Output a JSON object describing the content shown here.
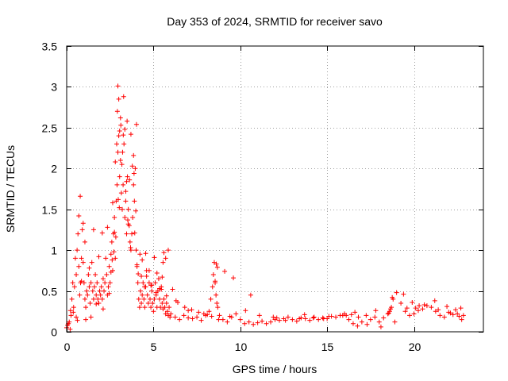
{
  "chart_data": {
    "type": "scatter",
    "title": "Day 353 of 2024, SRMTID for receiver savo",
    "xlabel": "GPS time / hours",
    "ylabel": "SRMTID / TECUs",
    "xlim": [
      0,
      24
    ],
    "ylim": [
      0,
      3.5
    ],
    "x_ticks": [
      0,
      5,
      10,
      15,
      20
    ],
    "x_tick_labels": [
      "0",
      "5",
      "10",
      "15",
      "20"
    ],
    "y_ticks": [
      0,
      0.5,
      1,
      1.5,
      2,
      2.5,
      3,
      3.5
    ],
    "y_tick_labels": [
      "0",
      "0.5",
      "1",
      "1.5",
      "2",
      "2.5",
      "3",
      "3.5"
    ],
    "grid": true,
    "marker": "+",
    "color": "#ff0000",
    "series": [
      {
        "name": "savo",
        "x": [
          0.0,
          0.05,
          0.1,
          0.15,
          0.2,
          0.25,
          0.3,
          0.35,
          0.4,
          0.45,
          0.5,
          0.55,
          0.6,
          0.65,
          0.7,
          0.75,
          0.8,
          0.85,
          0.9,
          0.95,
          1.0,
          1.05,
          1.1,
          1.15,
          1.2,
          1.25,
          1.3,
          1.35,
          1.4,
          1.45,
          1.5,
          1.55,
          1.6,
          1.65,
          1.7,
          1.75,
          1.8,
          1.85,
          1.9,
          1.95,
          2.0,
          2.05,
          2.1,
          2.15,
          2.2,
          2.25,
          2.3,
          2.35,
          2.4,
          2.45,
          2.5,
          2.55,
          2.6,
          2.65,
          2.7,
          2.75,
          2.8,
          2.85,
          2.9,
          2.95,
          3.0,
          3.05,
          3.1,
          3.15,
          3.2,
          3.25,
          3.3,
          3.35,
          3.4,
          3.45,
          3.5,
          3.55,
          3.6,
          3.65,
          3.7,
          3.75,
          3.8,
          3.85,
          3.9,
          3.95,
          4.0,
          4.05,
          4.1,
          4.15,
          4.2,
          4.25,
          4.3,
          4.35,
          4.4,
          4.45,
          4.5,
          4.55,
          4.6,
          4.65,
          4.7,
          4.75,
          4.8,
          4.85,
          4.9,
          4.95,
          5.0,
          5.05,
          5.1,
          5.15,
          5.2,
          5.25,
          5.3,
          5.35,
          5.4,
          5.45,
          5.5,
          5.55,
          5.6,
          5.65,
          5.7,
          5.75,
          5.8,
          5.85,
          5.9,
          5.95,
          6.0,
          6.25,
          6.5,
          6.75,
          7.0,
          7.25,
          7.5,
          7.75,
          8.0,
          8.2,
          8.3,
          8.4,
          8.45,
          8.5,
          8.55,
          8.6,
          8.65,
          8.7,
          8.8,
          9.0,
          9.25,
          9.5,
          9.75,
          10.0,
          10.25,
          10.5,
          10.75,
          11.0,
          11.25,
          11.5,
          11.75,
          12.0,
          12.25,
          12.5,
          12.75,
          13.0,
          13.25,
          13.5,
          13.75,
          14.0,
          14.25,
          14.5,
          14.75,
          15.0,
          15.25,
          15.5,
          15.75,
          16.0,
          16.25,
          16.5,
          16.75,
          17.0,
          17.25,
          17.5,
          17.75,
          18.0,
          18.25,
          18.5,
          18.6,
          18.7,
          18.8,
          19.0,
          19.25,
          19.5,
          19.75,
          20.0,
          20.25,
          20.5,
          20.75,
          21.0,
          21.25,
          21.5,
          21.75,
          22.0,
          22.25,
          22.5,
          22.75,
          22.85,
          0.55,
          0.62,
          0.7,
          0.78,
          0.85,
          0.95,
          1.05,
          1.3,
          1.55,
          1.85,
          2.05,
          2.35,
          2.55,
          2.65,
          2.75,
          2.8,
          2.88,
          2.92,
          2.95,
          3.0,
          3.05,
          3.1,
          3.18,
          3.22,
          3.28,
          3.35,
          3.4,
          3.48,
          3.55,
          3.62,
          3.7,
          3.78,
          3.85,
          3.92,
          3.98,
          4.05,
          4.12,
          4.22,
          4.35,
          4.48,
          4.6,
          4.75,
          4.9,
          5.05,
          5.2,
          5.35,
          5.5,
          5.55,
          5.6,
          5.7,
          5.85,
          6.1,
          6.4,
          6.8,
          7.2,
          7.6,
          8.1,
          8.35,
          8.55,
          8.62,
          8.68,
          9.1,
          9.6,
          10.3,
          11.1,
          11.9,
          12.6,
          13.4,
          14.2,
          15.1,
          15.9,
          16.4,
          16.6,
          17.3,
          18.1,
          18.55,
          18.65,
          18.75,
          19.4,
          19.9,
          20.1,
          20.6,
          21.2,
          21.9,
          22.4,
          22.7,
          0.22,
          0.38,
          1.1,
          1.4,
          1.7,
          2.1,
          2.45,
          2.62,
          2.72,
          2.83,
          2.97,
          3.03,
          3.12,
          3.26,
          3.45,
          3.52,
          3.68,
          3.88,
          4.02,
          4.3,
          4.55,
          4.85,
          5.15,
          5.45,
          5.75,
          6.3,
          7.0,
          7.9,
          8.75,
          9.4,
          10.6,
          12.1,
          13.7,
          14.8,
          16.1,
          16.8,
          17.8,
          18.9,
          19.6,
          20.3,
          21.4,
          22.1,
          22.6
        ],
        "y": [
          0.05,
          0.08,
          0.1,
          0.12,
          0.03,
          0.2,
          0.4,
          0.6,
          0.3,
          0.55,
          0.9,
          0.7,
          1.0,
          1.2,
          0.8,
          0.45,
          0.6,
          0.9,
          1.25,
          0.85,
          0.6,
          0.4,
          0.3,
          0.5,
          0.45,
          0.7,
          0.55,
          0.35,
          0.6,
          0.85,
          0.5,
          0.4,
          0.55,
          0.7,
          0.45,
          0.6,
          0.4,
          0.35,
          0.5,
          0.45,
          0.55,
          0.4,
          0.65,
          0.5,
          0.6,
          0.9,
          0.7,
          0.45,
          0.55,
          0.8,
          0.6,
          0.95,
          1.1,
          0.75,
          1.2,
          1.4,
          0.9,
          1.6,
          1.8,
          2.2,
          2.4,
          1.9,
          2.1,
          1.7,
          1.5,
          1.8,
          2.3,
          1.4,
          1.6,
          1.2,
          1.9,
          1.5,
          1.3,
          1.1,
          1.0,
          1.2,
          1.4,
          1.8,
          1.6,
          2.0,
          1.0,
          0.8,
          0.6,
          0.4,
          0.3,
          0.5,
          0.35,
          0.45,
          0.6,
          0.4,
          0.3,
          0.55,
          0.75,
          0.45,
          0.35,
          0.6,
          0.4,
          0.3,
          0.5,
          0.35,
          0.25,
          0.4,
          0.6,
          0.45,
          0.3,
          0.5,
          0.65,
          0.4,
          0.3,
          0.55,
          0.35,
          0.28,
          0.4,
          0.3,
          0.22,
          0.35,
          0.25,
          0.2,
          0.3,
          0.18,
          0.22,
          0.18,
          0.15,
          0.2,
          0.17,
          0.16,
          0.18,
          0.14,
          0.2,
          0.25,
          0.4,
          0.55,
          0.7,
          0.85,
          0.6,
          0.45,
          0.35,
          0.3,
          0.2,
          0.15,
          0.12,
          0.18,
          0.22,
          0.15,
          0.1,
          0.12,
          0.09,
          0.11,
          0.13,
          0.1,
          0.12,
          0.15,
          0.14,
          0.16,
          0.18,
          0.15,
          0.13,
          0.17,
          0.16,
          0.14,
          0.18,
          0.15,
          0.17,
          0.16,
          0.19,
          0.18,
          0.2,
          0.22,
          0.15,
          0.1,
          0.07,
          0.12,
          0.2,
          0.15,
          0.18,
          0.12,
          0.17,
          0.22,
          0.25,
          0.3,
          0.4,
          0.48,
          0.35,
          0.25,
          0.2,
          0.22,
          0.26,
          0.28,
          0.32,
          0.3,
          0.25,
          0.2,
          0.18,
          0.24,
          0.21,
          0.22,
          0.15,
          0.2,
          0.18,
          0.14,
          1.42,
          1.66,
          0.62,
          1.33,
          1.1,
          0.78,
          1.25,
          0.92,
          1.21,
          1.28,
          0.73,
          1.58,
          1.22,
          2.08,
          2.3,
          2.7,
          3.01,
          2.85,
          2.46,
          2.62,
          2.05,
          2.2,
          2.88,
          2.48,
          1.72,
          2.58,
          1.32,
          1.86,
          2.42,
          2.03,
          2.16,
          1.21,
          1.48,
          0.82,
          0.71,
          0.95,
          0.88,
          0.55,
          0.68,
          0.75,
          0.57,
          0.91,
          0.72,
          0.53,
          0.67,
          0.85,
          0.97,
          0.9,
          1.0,
          0.52,
          0.36,
          0.3,
          0.27,
          0.24,
          0.21,
          0.19,
          0.62,
          0.83,
          0.79,
          0.74,
          0.66,
          0.26,
          0.2,
          0.18,
          0.14,
          0.16,
          0.17,
          0.19,
          0.2,
          0.21,
          0.24,
          0.09,
          0.06,
          0.23,
          0.28,
          0.42,
          0.46,
          0.36,
          0.29,
          0.33,
          0.38,
          0.31,
          0.27,
          0.29,
          0.26,
          0.24,
          0.15,
          0.18,
          0.34,
          0.28,
          0.47,
          0.88,
          0.98,
          1.16,
          1.62,
          1.52,
          2.53,
          2.41,
          1.84,
          1.37,
          1.03,
          1.94,
          2.54,
          0.68,
          0.96,
          0.57,
          0.48,
          0.52,
          0.44,
          0.38,
          0.26,
          0.22,
          0.15,
          0.19,
          0.45,
          0.17,
          0.21,
          0.16,
          0.2,
          0.18,
          0.26,
          0.12,
          0.29,
          0.32,
          0.27,
          0.23,
          0.19
        ]
      }
    ]
  }
}
